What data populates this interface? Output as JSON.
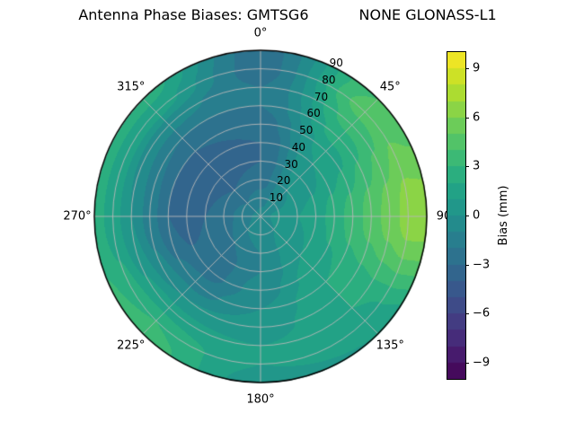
{
  "figure": {
    "title_left": "Antenna Phase Biases: GMTSG6",
    "title_right": "NONE GLONASS-L1",
    "background": "#ffffff"
  },
  "chart_data": {
    "type": "heatmap",
    "projection": "polar",
    "title": "Antenna Phase Biases: GMTSG6        NONE GLONASS-L1",
    "colormap": "viridis",
    "rmax": 90,
    "grid": {
      "radial_step": 10,
      "azimuth_step": 45,
      "color": "#b8b8b8",
      "outline_color": "#000000"
    },
    "azimuth_ticks": [
      {
        "angle": 0,
        "label": "0°"
      },
      {
        "angle": 45,
        "label": "45°"
      },
      {
        "angle": 90,
        "label": "90"
      },
      {
        "angle": 135,
        "label": "135°"
      },
      {
        "angle": 180,
        "label": "180°"
      },
      {
        "angle": 225,
        "label": "225°"
      },
      {
        "angle": 270,
        "label": "270°"
      },
      {
        "angle": 315,
        "label": "315°"
      }
    ],
    "radial_ticks": [
      {
        "value": 10,
        "label": "10"
      },
      {
        "value": 20,
        "label": "20"
      },
      {
        "value": 30,
        "label": "30"
      },
      {
        "value": 40,
        "label": "40"
      },
      {
        "value": 50,
        "label": "50"
      },
      {
        "value": 60,
        "label": "60"
      },
      {
        "value": 70,
        "label": "70"
      },
      {
        "value": 80,
        "label": "80"
      },
      {
        "value": 90,
        "label": "90"
      }
    ],
    "colorbar": {
      "label": "Bias (mm)",
      "ticks": [
        {
          "value": 9,
          "label": "9"
        },
        {
          "value": 6,
          "label": "6"
        },
        {
          "value": 3,
          "label": "3"
        },
        {
          "value": 0,
          "label": "0"
        },
        {
          "value": -3,
          "label": "−3"
        },
        {
          "value": -6,
          "label": "−6"
        },
        {
          "value": -9,
          "label": "−9"
        }
      ],
      "vmin": -10,
      "vmax": 10,
      "level_step": 1
    },
    "bias_grid_mm": {
      "description": "Estimated phase bias (mm) sampled on azimuth x radius grid, azimuth clockwise from top",
      "azimuths_deg": [
        0,
        45,
        90,
        135,
        180,
        225,
        270,
        315
      ],
      "radii_deg": [
        0,
        10,
        20,
        30,
        40,
        50,
        60,
        70,
        80,
        90
      ],
      "values": [
        [
          -0.5,
          -0.5,
          -0.5,
          -0.5,
          -0.5,
          -0.5,
          -0.5,
          -0.5
        ],
        [
          -1.5,
          -0.5,
          0.5,
          0.0,
          -0.5,
          -1.0,
          -1.5,
          -2.0
        ],
        [
          -2.5,
          0.0,
          1.0,
          0.5,
          -1.0,
          -2.0,
          -2.5,
          -3.0
        ],
        [
          -3.0,
          0.5,
          1.5,
          1.0,
          -1.0,
          -2.5,
          -3.0,
          -3.5
        ],
        [
          -3.0,
          1.0,
          2.5,
          1.5,
          -0.5,
          -2.5,
          -3.5,
          -3.5
        ],
        [
          -2.5,
          1.5,
          3.5,
          2.0,
          0.0,
          -1.5,
          -3.0,
          -3.0
        ],
        [
          -2.0,
          2.5,
          4.5,
          2.0,
          0.5,
          0.0,
          -1.5,
          -2.0
        ],
        [
          -2.0,
          3.5,
          5.5,
          2.0,
          1.0,
          1.5,
          0.0,
          -0.5
        ],
        [
          -2.5,
          4.5,
          6.5,
          1.5,
          1.0,
          3.0,
          1.5,
          1.5
        ],
        [
          -2.5,
          4.0,
          6.5,
          1.0,
          0.5,
          3.5,
          2.5,
          2.5
        ]
      ]
    }
  }
}
